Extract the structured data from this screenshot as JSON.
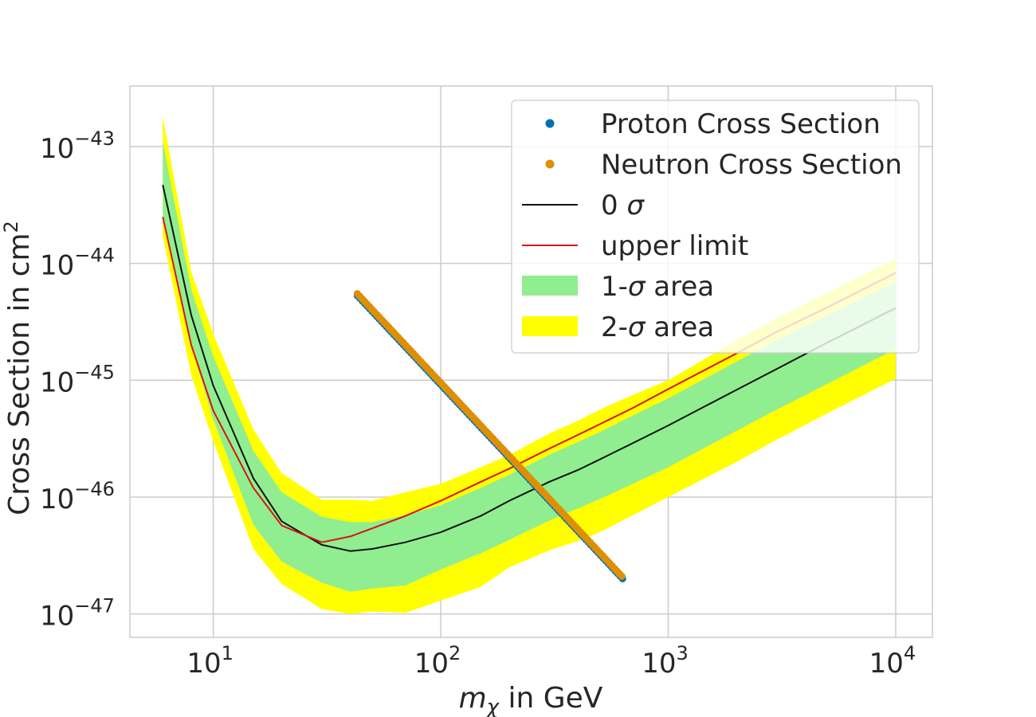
{
  "chart_data": {
    "type": "line",
    "title": "",
    "xlabel": {
      "base": "m",
      "subscript": "χ",
      "rest": " in GeV"
    },
    "ylabel": {
      "text": "Cross Section in cm",
      "superscript": "2"
    },
    "x_scale": "log",
    "y_scale": "log",
    "xlim": [
      4.3,
      14500
    ],
    "ylim": [
      6.3e-48,
      3.3e-43
    ],
    "grid": true,
    "x_ticks": [
      {
        "value": 10,
        "base": "10",
        "exp": "1"
      },
      {
        "value": 100,
        "base": "10",
        "exp": "2"
      },
      {
        "value": 1000,
        "base": "10",
        "exp": "3"
      },
      {
        "value": 10000,
        "base": "10",
        "exp": "4"
      }
    ],
    "y_ticks": [
      {
        "value": 1e-43,
        "base": "10",
        "exp": "−43"
      },
      {
        "value": 1e-44,
        "base": "10",
        "exp": "−44"
      },
      {
        "value": 1e-45,
        "base": "10",
        "exp": "−45"
      },
      {
        "value": 1e-46,
        "base": "10",
        "exp": "−46"
      },
      {
        "value": 1e-47,
        "base": "10",
        "exp": "−47"
      }
    ],
    "legend_position": "top-right",
    "legend": [
      {
        "kind": "dot",
        "color": "#0072b2",
        "label": "Proton Cross Section"
      },
      {
        "kind": "dot",
        "color": "#de8f05",
        "label": "Neutron Cross Section"
      },
      {
        "kind": "line",
        "color": "#111111",
        "label_pre": "0 ",
        "label_sigma": "σ",
        "label_post": ""
      },
      {
        "kind": "line",
        "color": "#dd1111",
        "label": "upper limit"
      },
      {
        "kind": "patch",
        "color": "#90ee90",
        "label_pre": "1-",
        "label_sigma": "σ",
        "label_post": " area"
      },
      {
        "kind": "patch",
        "color": "#ffff00",
        "label_pre": "2-",
        "label_sigma": "σ",
        "label_post": " area"
      }
    ],
    "x": [
      6,
      8,
      10,
      15,
      20,
      30,
      40,
      50,
      70,
      100,
      150,
      200,
      300,
      400,
      500,
      700,
      1000,
      2000,
      3000,
      5000,
      10000
    ],
    "series": [
      {
        "name": "0 σ",
        "color": "#111111",
        "values": [
          4.7e-44,
          3.6e-45,
          9e-46,
          1.45e-46,
          6.2e-47,
          3.9e-47,
          3.45e-47,
          3.6e-47,
          4.1e-47,
          5e-47,
          6.9e-47,
          9.3e-47,
          1.35e-46,
          1.7e-46,
          2.1e-46,
          2.9e-46,
          4.1e-46,
          8.3e-46,
          1.25e-45,
          2.1e-45,
          4.15e-45
        ]
      },
      {
        "name": "upper limit",
        "color": "#dd1111",
        "values": [
          2.5e-44,
          2e-45,
          5.5e-46,
          1.2e-46,
          5.7e-47,
          4.1e-47,
          4.6e-47,
          5.4e-47,
          6.9e-47,
          9.3e-47,
          1.35e-46,
          1.75e-46,
          2.6e-46,
          3.4e-46,
          4.2e-46,
          5.8e-46,
          8.4e-46,
          1.7e-45,
          2.6e-45,
          4.2e-45,
          8.3e-45
        ]
      }
    ],
    "bands": [
      {
        "name": "2-σ area",
        "color": "#ffff00",
        "upper": [
          1.8e-43,
          8.5e-45,
          2.5e-45,
          3.8e-46,
          1.6e-46,
          9.5e-47,
          9.5e-47,
          9.3e-47,
          1.1e-46,
          1.3e-46,
          1.8e-46,
          2.3e-46,
          3.5e-46,
          4.5e-46,
          5.6e-46,
          7.5e-46,
          1e-45,
          2.2e-45,
          3.4e-45,
          5.6e-45,
          1.1e-44
        ],
        "lower": [
          1.7e-44,
          1.1e-45,
          3e-46,
          3.6e-47,
          1.8e-47,
          1.1e-47,
          1e-47,
          1.05e-47,
          1.02e-47,
          1.3e-47,
          1.7e-47,
          2.5e-47,
          3.5e-47,
          4.2e-47,
          5e-47,
          7e-47,
          1e-46,
          2e-46,
          3.1e-46,
          5.2e-46,
          1.03e-45
        ]
      },
      {
        "name": "1-σ area",
        "color": "#90ee90",
        "upper": [
          1.1e-43,
          6e-45,
          1.6e-45,
          2.5e-46,
          1.1e-46,
          6.8e-47,
          6.1e-47,
          6.1e-47,
          7e-47,
          8.5e-47,
          1.2e-46,
          1.55e-46,
          2.3e-46,
          2.95e-46,
          3.6e-46,
          5e-46,
          7e-46,
          1.45e-45,
          2.2e-45,
          3.6e-45,
          7e-45
        ],
        "lower": [
          2.5e-44,
          2e-45,
          4.6e-46,
          5.8e-47,
          2.8e-47,
          1.85e-47,
          1.55e-47,
          1.65e-47,
          1.75e-47,
          2.4e-47,
          3.3e-47,
          4.3e-47,
          6.3e-47,
          8e-47,
          9.6e-47,
          1.3e-46,
          1.8e-46,
          3.7e-46,
          5.6e-46,
          9.3e-46,
          1.85e-45
        ]
      }
    ],
    "scatter_series": [
      {
        "name": "Proton Cross Section",
        "color": "#0072b2",
        "x_range": [
          43,
          630
        ],
        "y_range": [
          5.3e-45,
          2e-47
        ],
        "points": 110
      },
      {
        "name": "Neutron Cross Section",
        "color": "#de8f05",
        "x_range": [
          43,
          625
        ],
        "y_range": [
          5.5e-45,
          2.1e-47
        ],
        "points": 110
      }
    ]
  }
}
